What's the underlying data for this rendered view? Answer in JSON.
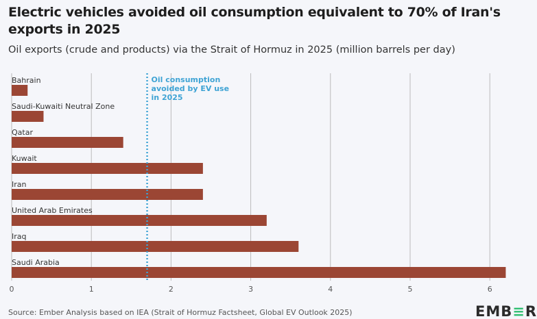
{
  "title": "Electric vehicles avoided oil consumption equivalent to 70% of Iran's exports in 2025",
  "subtitle": "Oil exports (crude and products) via the Strait of Hormuz in 2025 (million barrels per day)",
  "source": "Source: Ember Analysis based on IEA (Strait of Hormuz Factsheet, Global EV Outlook 2025)",
  "logo": "EMBER",
  "colors": {
    "bar": "#9b4634",
    "ev_line": "#3ea3d4",
    "grid": "#bbbbbb",
    "background": "#f5f6fa"
  },
  "chart_data": {
    "type": "bar",
    "orientation": "horizontal",
    "categories": [
      "Bahrain",
      "Saudi-Kuwaiti Neutral Zone",
      "Qatar",
      "Kuwait",
      "Iran",
      "United Arab Emirates",
      "Iraq",
      "Saudi Arabia"
    ],
    "values": [
      0.2,
      0.4,
      1.4,
      2.4,
      2.4,
      3.2,
      3.6,
      6.2
    ],
    "xlim": [
      0,
      6.2
    ],
    "xticks": [
      "0",
      "1",
      "2",
      "3",
      "4",
      "5",
      "6"
    ],
    "grid": true,
    "reference_line": {
      "value": 1.7,
      "label": [
        "Oil consumption",
        "avoided by EV use",
        "in 2025"
      ]
    }
  }
}
